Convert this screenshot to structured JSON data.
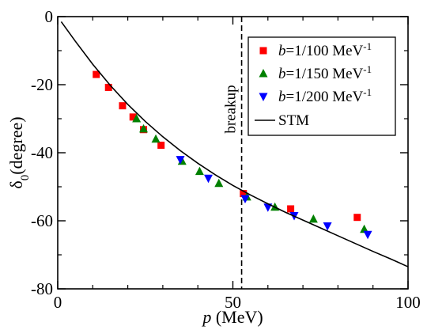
{
  "chart_data": {
    "type": "scatter",
    "xlabel": {
      "italic": "p",
      "rest": " (MeV)"
    },
    "ylabel": {
      "main": "δ",
      "sub": "0",
      "rest": "(degree)"
    },
    "xlim": [
      0,
      100
    ],
    "ylim": [
      -80,
      0
    ],
    "x_ticks": [
      0,
      50,
      100
    ],
    "y_ticks": [
      0,
      -20,
      -40,
      -60,
      -80
    ],
    "x_tick_labels": [
      "0",
      "50",
      "100"
    ],
    "y_tick_labels": [
      "0",
      "-20",
      "-40",
      "-60",
      "-80"
    ],
    "grid": false,
    "legend_position": "top-right",
    "series": [
      {
        "label": {
          "italic": "b",
          "rest": "=1/100 MeV",
          "sup": "-1"
        },
        "marker": "square",
        "color": "#ff0000",
        "points": [
          [
            11,
            -17
          ],
          [
            14.5,
            -20.8
          ],
          [
            18.5,
            -26.2
          ],
          [
            21.5,
            -29.5
          ],
          [
            24.5,
            -33.2
          ],
          [
            29.5,
            -37.8
          ],
          [
            53,
            -52
          ],
          [
            66.5,
            -56.5
          ],
          [
            85.5,
            -59
          ]
        ]
      },
      {
        "label": {
          "italic": "b",
          "rest": "=1/150 MeV",
          "sup": "-1"
        },
        "marker": "triangle-up",
        "color": "#008000",
        "points": [
          [
            22.5,
            -30
          ],
          [
            24.5,
            -33
          ],
          [
            28,
            -36
          ],
          [
            35.5,
            -42.5
          ],
          [
            40.5,
            -45.5
          ],
          [
            46,
            -49
          ],
          [
            54,
            -53
          ],
          [
            62,
            -56
          ],
          [
            73,
            -59.5
          ],
          [
            87.5,
            -62.5
          ]
        ]
      },
      {
        "label": {
          "italic": "b",
          "rest": "=1/200 MeV",
          "sup": "-1"
        },
        "marker": "triangle-down",
        "color": "#0000ff",
        "points": [
          [
            35,
            -42
          ],
          [
            43,
            -47.5
          ],
          [
            53.5,
            -53.5
          ],
          [
            60,
            -56
          ],
          [
            67.5,
            -58.5
          ],
          [
            77,
            -61.5
          ],
          [
            88.5,
            -64
          ]
        ]
      },
      {
        "label": {
          "text": "STM"
        },
        "type": "line",
        "color": "#000000",
        "points": [
          [
            1,
            -1.5
          ],
          [
            5,
            -7.2
          ],
          [
            10,
            -14
          ],
          [
            15,
            -20.2
          ],
          [
            20,
            -25.8
          ],
          [
            25,
            -30.8
          ],
          [
            30,
            -35.3
          ],
          [
            35,
            -39.4
          ],
          [
            40,
            -43.1
          ],
          [
            45,
            -46.5
          ],
          [
            50,
            -49.6
          ],
          [
            55,
            -52.4
          ],
          [
            60,
            -55
          ],
          [
            65,
            -57.5
          ],
          [
            70,
            -59.8
          ],
          [
            75,
            -62.1
          ],
          [
            80,
            -64.4
          ],
          [
            85,
            -66.7
          ],
          [
            90,
            -69
          ],
          [
            95,
            -71.2
          ],
          [
            100,
            -73.5
          ]
        ]
      }
    ],
    "annotation": {
      "text": "breakup",
      "x": 52.5,
      "style": "dashed-vertical-line"
    }
  }
}
